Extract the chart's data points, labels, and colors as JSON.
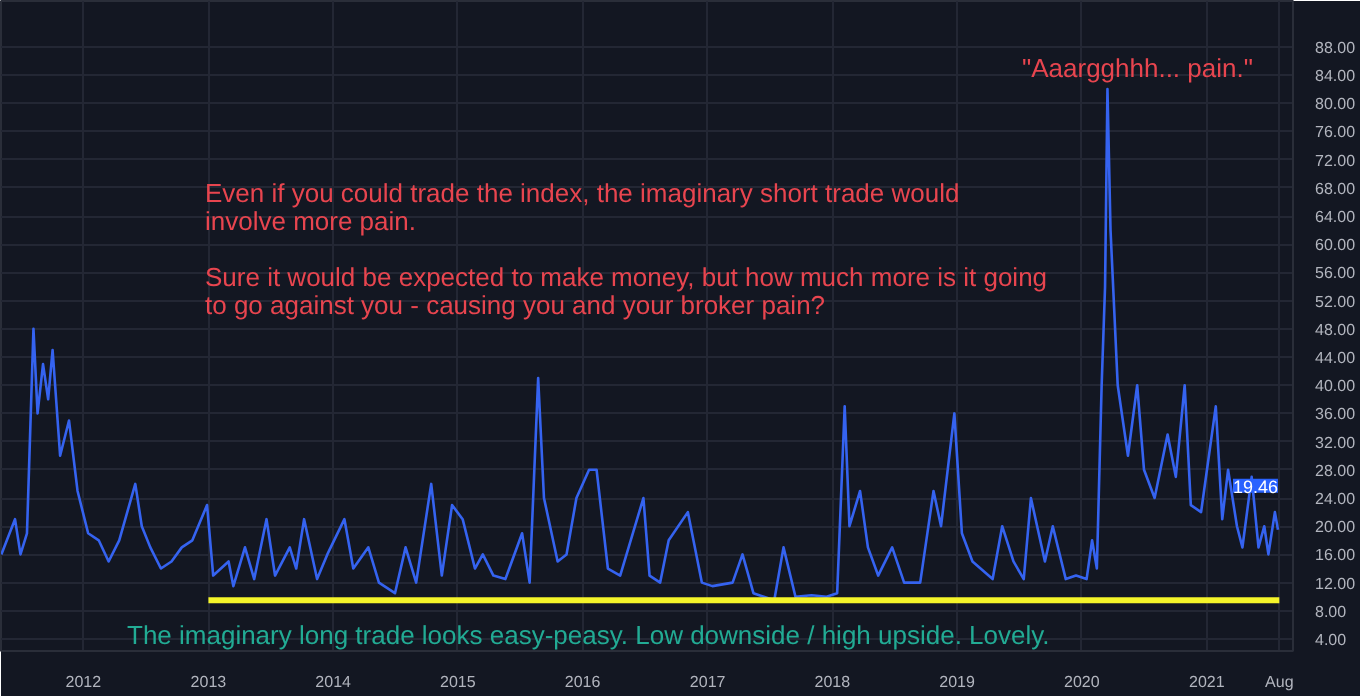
{
  "chart_data": {
    "type": "line",
    "grid": true,
    "marker": "none",
    "line_style": "solid",
    "xlim": [
      "2011-05-05",
      "2021-09-10"
    ],
    "ylim": [
      2.3,
      94.5
    ],
    "xticks": [
      {
        "value": "2012-01-01",
        "label": "2012"
      },
      {
        "value": "2013-01-01",
        "label": "2013"
      },
      {
        "value": "2014-01-01",
        "label": "2014"
      },
      {
        "value": "2015-01-01",
        "label": "2015"
      },
      {
        "value": "2016-01-01",
        "label": "2016"
      },
      {
        "value": "2017-01-01",
        "label": "2017"
      },
      {
        "value": "2018-01-01",
        "label": "2018"
      },
      {
        "value": "2019-01-01",
        "label": "2019"
      },
      {
        "value": "2020-01-01",
        "label": "2020"
      },
      {
        "value": "2021-01-01",
        "label": "2021"
      },
      {
        "value": "2021-08-01",
        "label": "Aug"
      }
    ],
    "yticks": [
      {
        "value": 4,
        "label": "4.00"
      },
      {
        "value": 8,
        "label": "8.00"
      },
      {
        "value": 12,
        "label": "12.00"
      },
      {
        "value": 16,
        "label": "16.00"
      },
      {
        "value": 20,
        "label": "20.00"
      },
      {
        "value": 24,
        "label": "24.00"
      },
      {
        "value": 28,
        "label": "28.00"
      },
      {
        "value": 32,
        "label": "32.00"
      },
      {
        "value": 36,
        "label": "36.00"
      },
      {
        "value": 40,
        "label": "40.00"
      },
      {
        "value": 44,
        "label": "44.00"
      },
      {
        "value": 48,
        "label": "48.00"
      },
      {
        "value": 52,
        "label": "52.00"
      },
      {
        "value": 56,
        "label": "56.00"
      },
      {
        "value": 60,
        "label": "60.00"
      },
      {
        "value": 64,
        "label": "64.00"
      },
      {
        "value": 68,
        "label": "68.00"
      },
      {
        "value": 72,
        "label": "72.00"
      },
      {
        "value": 76,
        "label": "76.00"
      },
      {
        "value": 80,
        "label": "80.00"
      },
      {
        "value": 84,
        "label": "84.00"
      },
      {
        "value": 88,
        "label": "88.00"
      }
    ],
    "series": [
      {
        "color": "#3563f0",
        "x": [
          "2011-05-06",
          "2011-06-15",
          "2011-07-01",
          "2011-07-20",
          "2011-08-08",
          "2011-08-20",
          "2011-09-05",
          "2011-09-20",
          "2011-10-03",
          "2011-10-25",
          "2011-11-20",
          "2011-12-15",
          "2012-01-15",
          "2012-02-15",
          "2012-03-15",
          "2012-04-15",
          "2012-06-01",
          "2012-06-20",
          "2012-07-15",
          "2012-08-15",
          "2012-09-15",
          "2012-10-15",
          "2012-11-15",
          "2012-12-28",
          "2013-01-15",
          "2013-03-01",
          "2013-03-15",
          "2013-04-18",
          "2013-05-15",
          "2013-06-20",
          "2013-07-15",
          "2013-08-27",
          "2013-09-15",
          "2013-10-08",
          "2013-11-15",
          "2013-12-15",
          "2014-02-03",
          "2014-03-01",
          "2014-04-14",
          "2014-05-15",
          "2014-07-01",
          "2014-08-01",
          "2014-09-01",
          "2014-10-15",
          "2014-11-15",
          "2014-12-15",
          "2015-01-15",
          "2015-02-20",
          "2015-03-15",
          "2015-04-15",
          "2015-05-20",
          "2015-07-08",
          "2015-07-30",
          "2015-08-24",
          "2015-09-10",
          "2015-10-20",
          "2015-11-15",
          "2015-12-14",
          "2016-01-20",
          "2016-02-11",
          "2016-03-15",
          "2016-04-20",
          "2016-06-27",
          "2016-07-15",
          "2016-08-15",
          "2016-09-09",
          "2016-11-04",
          "2016-12-15",
          "2017-01-15",
          "2017-03-15",
          "2017-04-13",
          "2017-05-15",
          "2017-07-15",
          "2017-08-11",
          "2017-09-15",
          "2017-11-01",
          "2017-12-15",
          "2018-01-15",
          "2018-02-06",
          "2018-02-20",
          "2018-03-23",
          "2018-04-15",
          "2018-05-15",
          "2018-06-25",
          "2018-07-30",
          "2018-09-15",
          "2018-10-24",
          "2018-11-15",
          "2018-12-24",
          "2019-01-15",
          "2019-02-15",
          "2019-04-15",
          "2019-05-13",
          "2019-06-15",
          "2019-07-15",
          "2019-08-05",
          "2019-09-15",
          "2019-10-08",
          "2019-11-15",
          "2019-12-15",
          "2020-01-15",
          "2020-01-31",
          "2020-02-14",
          "2020-02-28",
          "2020-03-09",
          "2020-03-16",
          "2020-03-25",
          "2020-04-15",
          "2020-05-15",
          "2020-06-11",
          "2020-07-01",
          "2020-08-01",
          "2020-09-08",
          "2020-10-02",
          "2020-10-28",
          "2020-11-15",
          "2020-12-15",
          "2021-01-27",
          "2021-02-15",
          "2021-03-04",
          "2021-03-30",
          "2021-04-15",
          "2021-05-12",
          "2021-06-01",
          "2021-06-18",
          "2021-06-30",
          "2021-07-19",
          "2021-07-28"
        ],
        "values": [
          16,
          21,
          16,
          19,
          48,
          36,
          43,
          38,
          45,
          30,
          35,
          25,
          19,
          18,
          15,
          18,
          26,
          20,
          17,
          14,
          15,
          17,
          18,
          23,
          13,
          15,
          11.5,
          17,
          12.5,
          21,
          13,
          17,
          14,
          21,
          12.5,
          16,
          21,
          14,
          17,
          12,
          10.5,
          17,
          12,
          26,
          13,
          23,
          21,
          14,
          16,
          13,
          12.5,
          19,
          12,
          41,
          24,
          15,
          16,
          24,
          28,
          28,
          14,
          13,
          24,
          13,
          12,
          18,
          22,
          12,
          11.5,
          12,
          16,
          10.5,
          9.5,
          17,
          10,
          10.2,
          10,
          10.5,
          37,
          20,
          25,
          17,
          13,
          17,
          12,
          12,
          25,
          20,
          36,
          19,
          15,
          12.5,
          20,
          15,
          12.5,
          24,
          15,
          20,
          12.5,
          13,
          12.5,
          18,
          14,
          40,
          54,
          82,
          62,
          40,
          30,
          40,
          28,
          24,
          33,
          27,
          40,
          23,
          22,
          37,
          21,
          28,
          20,
          17,
          27,
          17,
          20,
          16,
          22,
          19.5
        ]
      },
      {
        "color": "#f5f52a",
        "x": [
          "2013-01-01",
          "2021-08-01"
        ],
        "values": [
          9.5,
          9.5
        ]
      }
    ],
    "annotations": [
      "Even if you could trade the index, the imaginary short trade would\ninvolve more pain.\n\nSure it would be expected to make money, but how much more is it going\nto go against you -  causing you and your broker pain?",
      {
        "text": "\"Aaargghhh... pain.\"",
        "x": "2020-03-16",
        "y": 82
      },
      "The imaginary long trade looks easy-peasy. Low downside / high upside. Lovely.",
      {
        "text": "19.46",
        "x": "2021-07-28",
        "y": 19.5
      }
    ]
  }
}
